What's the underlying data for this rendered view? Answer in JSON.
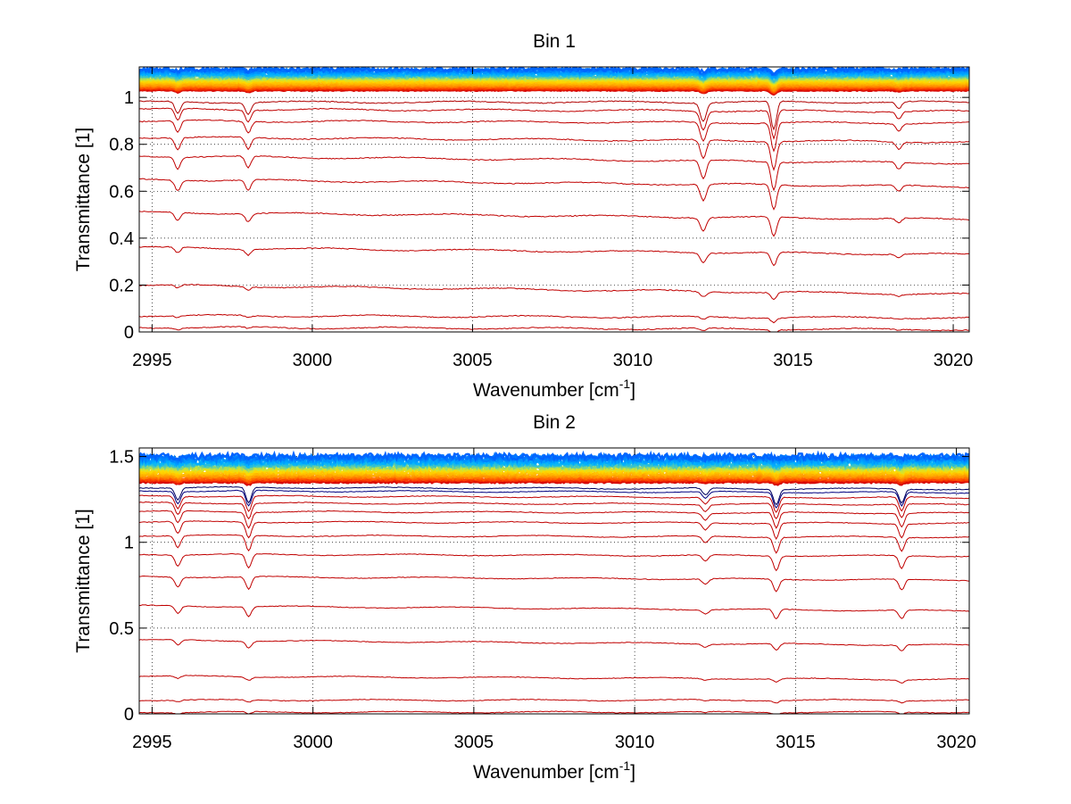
{
  "figure": {
    "background": "#ffffff"
  },
  "chart_data": [
    {
      "type": "line",
      "title": "Bin 1",
      "xlabel": "Wavenumber [cm",
      "xlabel_sup": "-1",
      "xlabel_tail": "]",
      "ylabel": "Transmittance [1]",
      "xlim": [
        2994.6,
        3020.5
      ],
      "ylim": [
        0,
        1.13
      ],
      "xticks": [
        2995,
        3000,
        3005,
        3010,
        3015,
        3020
      ],
      "xtick_labels": [
        "2995",
        "3000",
        "3005",
        "3010",
        "3015",
        "3020"
      ],
      "yticks": [
        0,
        0.2,
        0.4,
        0.6,
        0.8,
        1
      ],
      "ytick_labels": [
        "0",
        "0.2",
        "0.4",
        "0.6",
        "0.8",
        "1"
      ],
      "grid": "dotted",
      "x_samples": [
        2995,
        2996,
        2997,
        2998,
        2999,
        3000,
        3001,
        3002,
        3003,
        3004,
        3005,
        3006,
        3007,
        3008,
        3009,
        3010,
        3011,
        3012,
        3013,
        3014,
        3015,
        3016,
        3017,
        3018,
        3019,
        3020
      ],
      "absorption_lines": [
        {
          "x": 2995.8,
          "depth": 0.05,
          "width": 0.12
        },
        {
          "x": 2998.0,
          "depth": 0.05,
          "width": 0.12
        },
        {
          "x": 3012.2,
          "depth": 0.08,
          "width": 0.13
        },
        {
          "x": 3014.4,
          "depth": 0.12,
          "width": 0.12
        },
        {
          "x": 3018.3,
          "depth": 0.03,
          "width": 0.12
        }
      ],
      "red_series": [
        {
          "start": 0.02,
          "end": 0.01,
          "color": "#c00000"
        },
        {
          "start": 0.07,
          "end": 0.06,
          "color": "#c00000"
        },
        {
          "start": 0.2,
          "end": 0.16,
          "color": "#c00000"
        },
        {
          "start": 0.36,
          "end": 0.33,
          "color": "#c00000"
        },
        {
          "start": 0.51,
          "end": 0.48,
          "color": "#c00000"
        },
        {
          "start": 0.65,
          "end": 0.62,
          "color": "#c00000"
        },
        {
          "start": 0.75,
          "end": 0.72,
          "color": "#c00000"
        },
        {
          "start": 0.83,
          "end": 0.81,
          "color": "#c00000"
        },
        {
          "start": 0.9,
          "end": 0.89,
          "color": "#c00000"
        },
        {
          "start": 0.95,
          "end": 0.94,
          "color": "#c00000"
        },
        {
          "start": 0.98,
          "end": 0.98,
          "color": "#b00000"
        }
      ],
      "band": {
        "low": 1.03,
        "high": 1.12,
        "count": 30,
        "colors": [
          "#d40000",
          "#ff4500",
          "#ff8c00",
          "#ffb400",
          "#ffd700",
          "#c8e63c",
          "#50c8b4",
          "#00b4ff",
          "#0096ff",
          "#0064ff"
        ]
      }
    },
    {
      "type": "line",
      "title": "Bin 2",
      "xlabel": "Wavenumber [cm",
      "xlabel_sup": "-1",
      "xlabel_tail": "]",
      "ylabel": "Transmittance [1]",
      "xlim": [
        2994.6,
        3020.4
      ],
      "ylim": [
        0,
        1.55
      ],
      "xticks": [
        2995,
        3000,
        3005,
        3010,
        3015,
        3020
      ],
      "xtick_labels": [
        "2995",
        "3000",
        "3005",
        "3010",
        "3015",
        "3020"
      ],
      "yticks": [
        0,
        0.5,
        1,
        1.5
      ],
      "ytick_labels": [
        "0",
        "0.5",
        "1",
        "1.5"
      ],
      "grid": "dotted",
      "x_samples": [
        2995,
        2996,
        2997,
        2998,
        2999,
        3000,
        3001,
        3002,
        3003,
        3004,
        3005,
        3006,
        3007,
        3008,
        3009,
        3010,
        3011,
        3012,
        3013,
        3014,
        3015,
        3016,
        3017,
        3018,
        3019,
        3020
      ],
      "absorption_lines": [
        {
          "x": 2995.8,
          "depth": 0.07,
          "width": 0.12
        },
        {
          "x": 2998.0,
          "depth": 0.09,
          "width": 0.12
        },
        {
          "x": 3012.2,
          "depth": 0.04,
          "width": 0.13
        },
        {
          "x": 3014.4,
          "depth": 0.09,
          "width": 0.12
        },
        {
          "x": 3018.3,
          "depth": 0.08,
          "width": 0.12
        }
      ],
      "red_series": [
        {
          "start": 0.01,
          "end": 0.01,
          "color": "#c00000"
        },
        {
          "start": 0.08,
          "end": 0.08,
          "color": "#c00000"
        },
        {
          "start": 0.22,
          "end": 0.2,
          "color": "#c00000"
        },
        {
          "start": 0.43,
          "end": 0.4,
          "color": "#c00000"
        },
        {
          "start": 0.63,
          "end": 0.6,
          "color": "#c00000"
        },
        {
          "start": 0.8,
          "end": 0.78,
          "color": "#c00000"
        },
        {
          "start": 0.93,
          "end": 0.92,
          "color": "#c00000"
        },
        {
          "start": 1.04,
          "end": 1.03,
          "color": "#c00000"
        },
        {
          "start": 1.12,
          "end": 1.11,
          "color": "#c00000"
        },
        {
          "start": 1.18,
          "end": 1.17,
          "color": "#c00000"
        },
        {
          "start": 1.23,
          "end": 1.22,
          "color": "#c00000"
        },
        {
          "start": 1.27,
          "end": 1.26,
          "color": "#c00000"
        },
        {
          "start": 1.3,
          "end": 1.29,
          "color": "#000080"
        },
        {
          "start": 1.32,
          "end": 1.31,
          "color": "#000060"
        }
      ],
      "band": {
        "low": 1.35,
        "high": 1.5,
        "count": 30,
        "colors": [
          "#d40000",
          "#ff4500",
          "#ff8c00",
          "#ffb400",
          "#ffd700",
          "#c8e63c",
          "#50c8b4",
          "#00b4ff",
          "#0096ff",
          "#0064ff"
        ]
      }
    }
  ]
}
